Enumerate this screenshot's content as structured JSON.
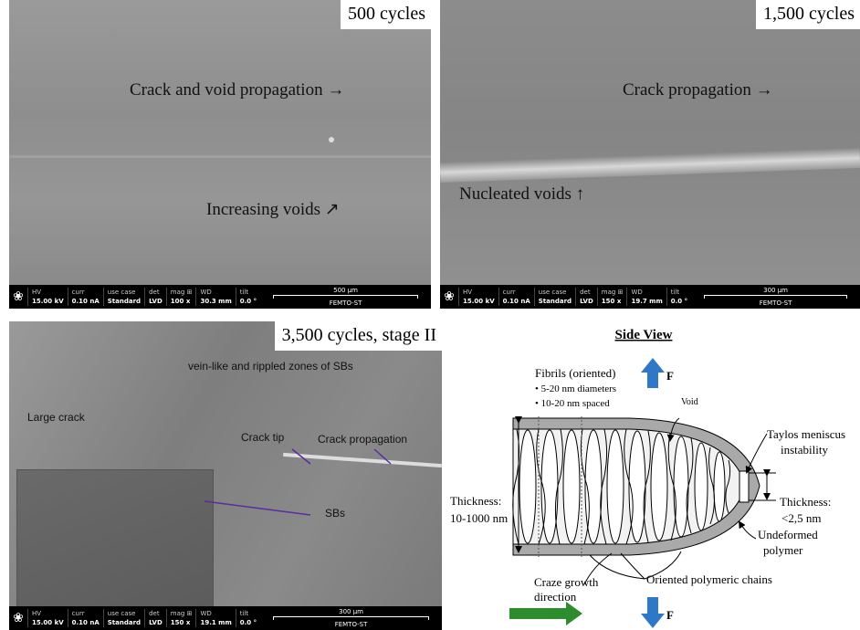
{
  "panels": [
    {
      "label": "500 cycles",
      "annotations": [
        "Crack and void propagation →",
        "Increasing voids ↗"
      ],
      "info": {
        "fields": [
          {
            "label": "HV",
            "value": "15.00 kV"
          },
          {
            "label": "curr",
            "value": "0.10 nA"
          },
          {
            "label": "use case",
            "value": "Standard"
          },
          {
            "label": "det",
            "value": "LVD"
          },
          {
            "label": "mag ⊞",
            "value": "100 x"
          },
          {
            "label": "WD",
            "value": "30.3 mm"
          },
          {
            "label": "tilt",
            "value": "0.0 °"
          }
        ],
        "scale": "500 μm",
        "lab": "FEMTO-ST"
      }
    },
    {
      "label": "1,500 cycles",
      "annotations": [
        "Crack propagation →",
        "Nucleated voids ↑"
      ],
      "info": {
        "fields": [
          {
            "label": "HV",
            "value": "15.00 kV"
          },
          {
            "label": "curr",
            "value": "0.10 nA"
          },
          {
            "label": "use case",
            "value": "Standard"
          },
          {
            "label": "det",
            "value": "LVD"
          },
          {
            "label": "mag ⊞",
            "value": "150 x"
          },
          {
            "label": "WD",
            "value": "19.7 mm"
          },
          {
            "label": "tilt",
            "value": "0.0 °"
          }
        ],
        "scale": "300 μm",
        "lab": "FEMTO-ST"
      }
    },
    {
      "label": "3,500 cycles, stage II",
      "annotations": [
        "vein-like and rippled zones of SBs",
        "Large crack",
        "Crack tip",
        "Crack propagation",
        "SBs"
      ],
      "info": {
        "fields": [
          {
            "label": "HV",
            "value": "15.00 kV"
          },
          {
            "label": "curr",
            "value": "0.10 nA"
          },
          {
            "label": "use case",
            "value": "Standard"
          },
          {
            "label": "det",
            "value": "LVD"
          },
          {
            "label": "mag ⊞",
            "value": "150 x"
          },
          {
            "label": "WD",
            "value": "19.1 mm"
          },
          {
            "label": "tilt",
            "value": "0.0 °"
          }
        ],
        "scale": "300 μm",
        "lab": "FEMTO-ST"
      }
    }
  ],
  "diagram": {
    "title": "Side View",
    "force_top": "F",
    "force_bottom": "F",
    "fibrils": [
      "Fibrils (oriented)",
      "• 5-20 nm diameters",
      "• 10-20 nm spaced"
    ],
    "void": "Void",
    "meniscus": [
      "Taylos meniscus",
      "instability"
    ],
    "thickness_left": [
      "Thickness:",
      "10-1000 nm"
    ],
    "thickness_right": [
      "Thickness:",
      "<2,5 nm"
    ],
    "undeformed": [
      "Undeformed",
      "polymer"
    ],
    "chains": "Oriented polymeric chains",
    "growth": [
      "Craze growth",
      "direction"
    ]
  }
}
